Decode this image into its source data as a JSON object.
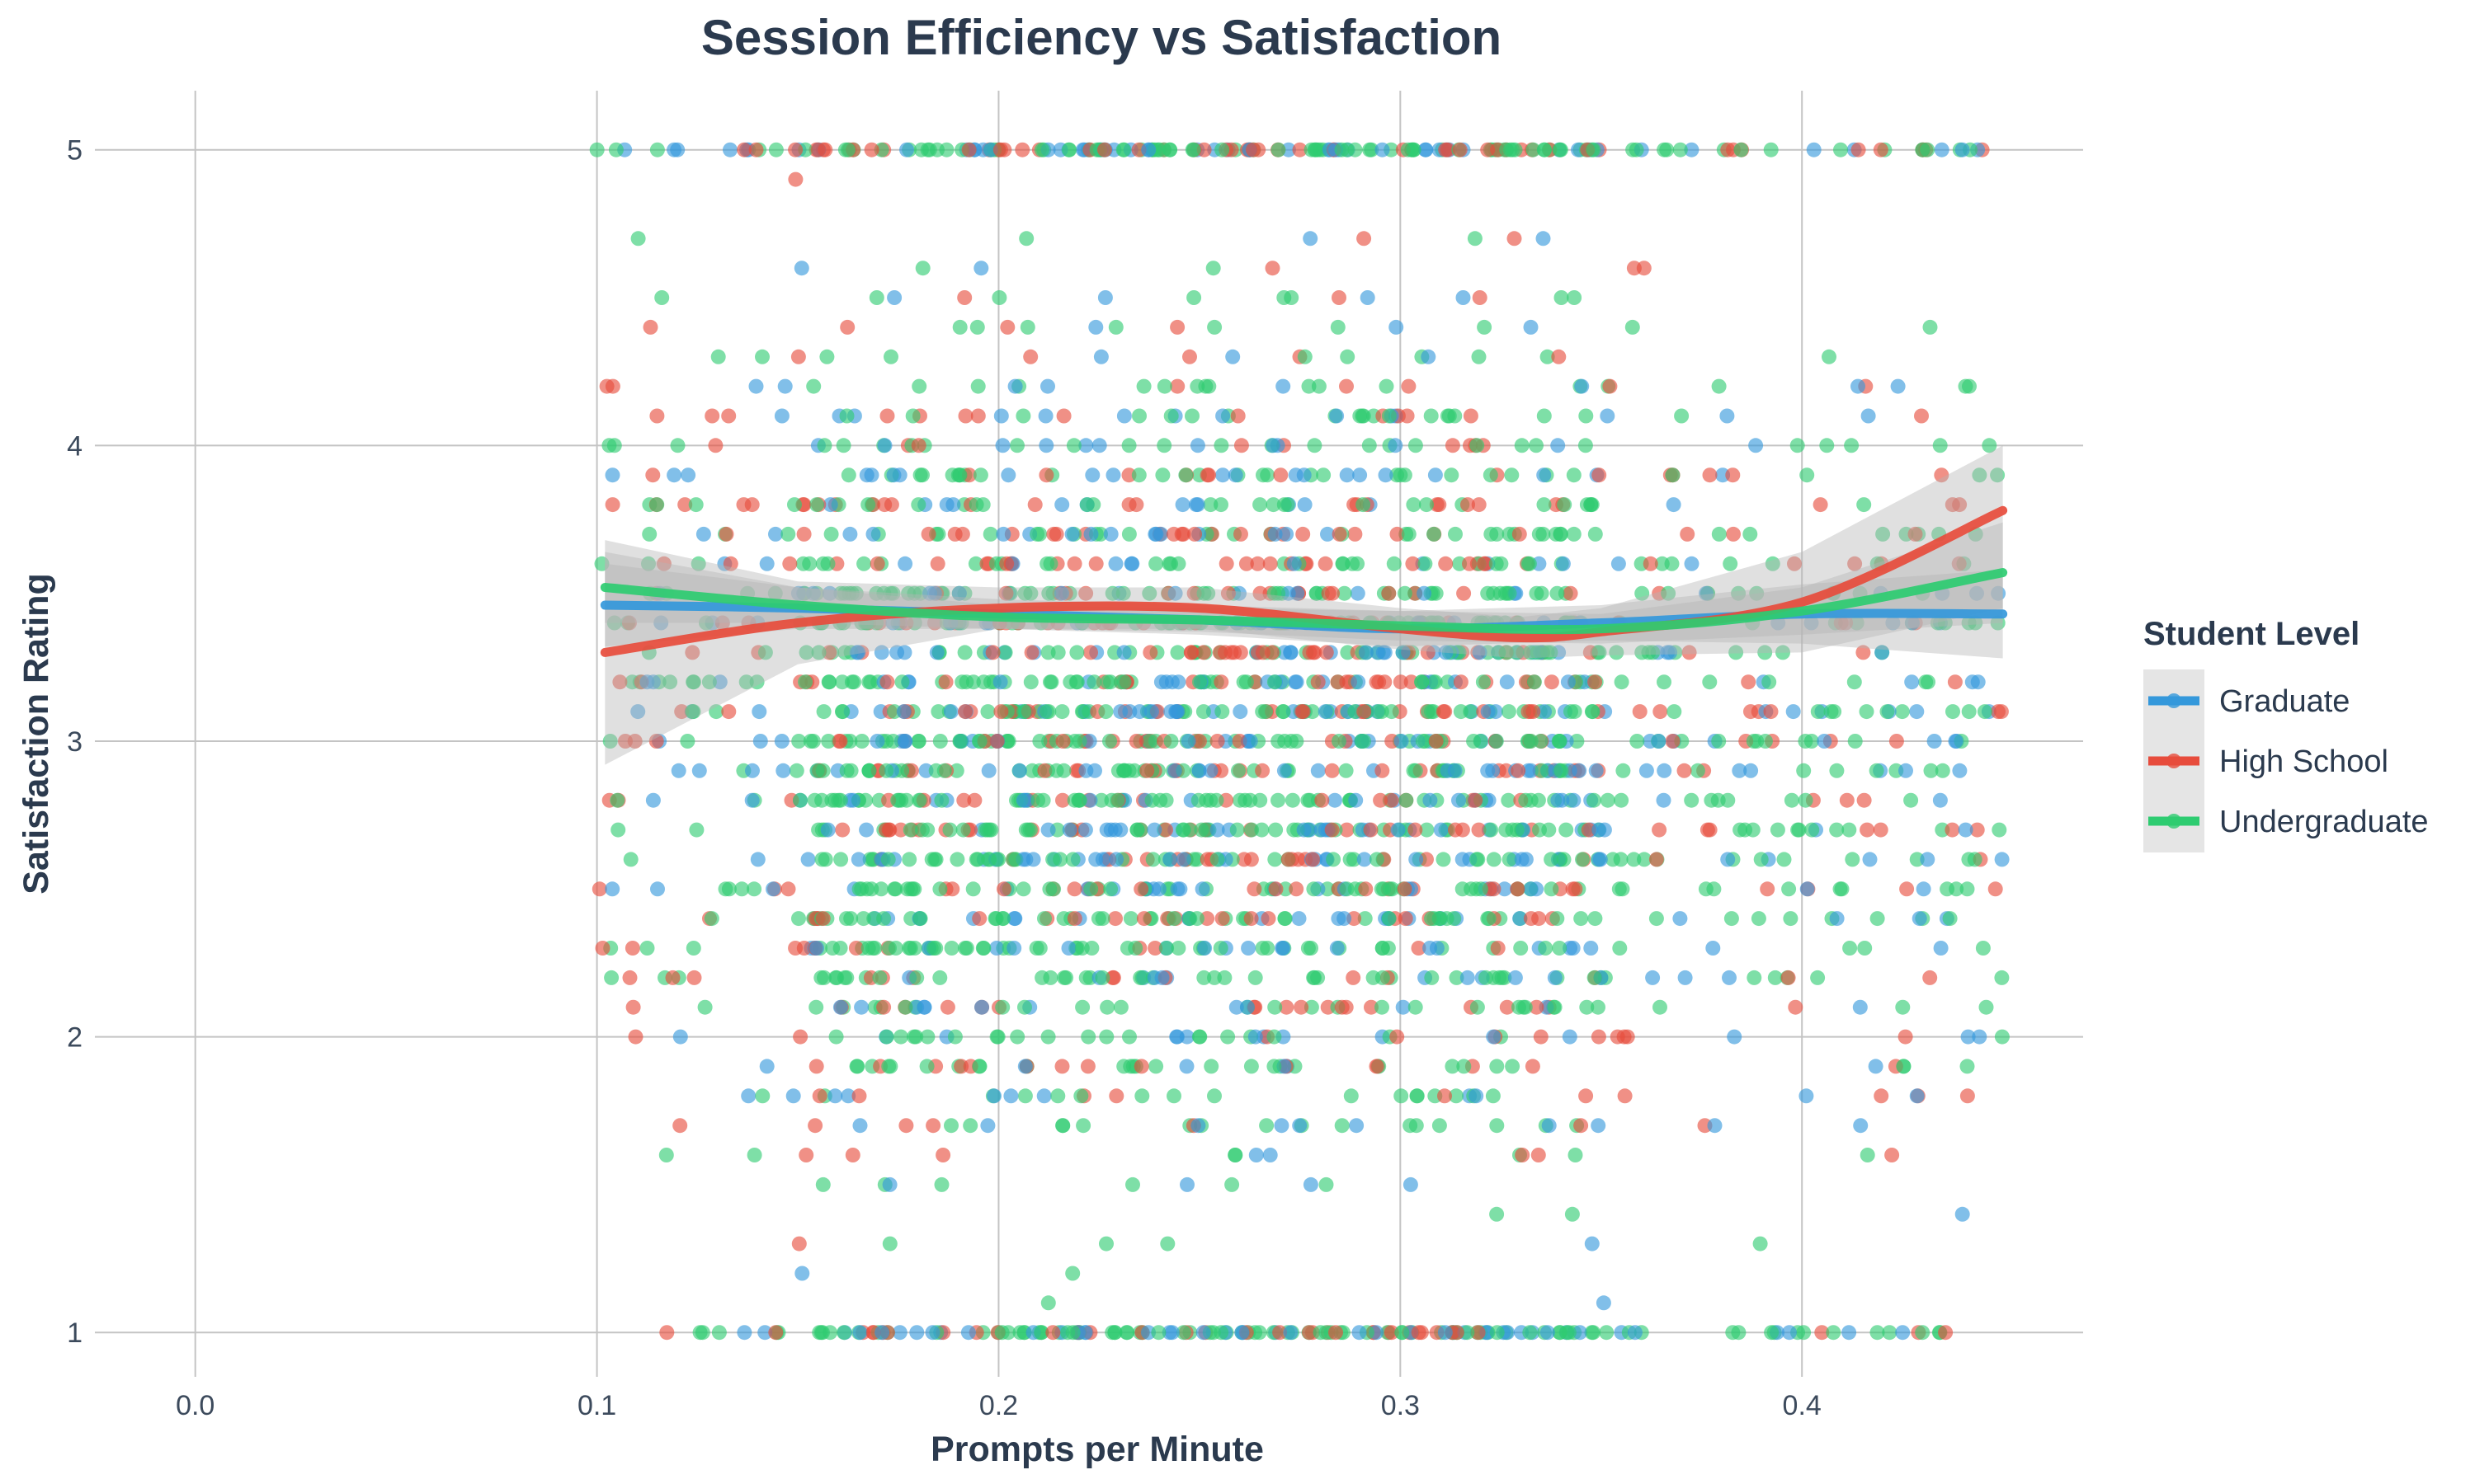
{
  "chart_data": {
    "type": "scatter",
    "title": "Session Efficiency vs Satisfaction",
    "xlabel": "Prompts per Minute",
    "ylabel": "Satisfaction Rating",
    "xlim": [
      -0.025,
      0.47
    ],
    "ylim": [
      0.85,
      5.2
    ],
    "x_ticks": [
      0.0,
      0.1,
      0.2,
      0.3,
      0.4
    ],
    "x_tick_labels": [
      "0.0",
      "0.1",
      "0.2",
      "0.3",
      "0.4"
    ],
    "y_ticks": [
      1,
      2,
      3,
      4,
      5
    ],
    "y_tick_labels": [
      "1",
      "2",
      "3",
      "4",
      "5"
    ],
    "grid": true,
    "legend": {
      "title": "Student Level",
      "placement": "right",
      "entries": [
        "Graduate",
        "High School",
        "Undergraduate"
      ]
    },
    "x_data_range": [
      0.1,
      0.45
    ],
    "y_data_range": [
      1.0,
      5.0
    ],
    "y_step": 0.1,
    "series": [
      {
        "name": "Graduate",
        "color": "#3498db",
        "trend": {
          "x": [
            0.102,
            0.15,
            0.2,
            0.25,
            0.3,
            0.35,
            0.4,
            0.45
          ],
          "y": [
            3.46,
            3.45,
            3.43,
            3.41,
            3.38,
            3.4,
            3.43,
            3.43
          ],
          "ci_lower": [
            3.32,
            3.38,
            3.38,
            3.36,
            3.32,
            3.34,
            3.33,
            3.28
          ],
          "ci_upper": [
            3.6,
            3.52,
            3.48,
            3.46,
            3.44,
            3.46,
            3.53,
            3.58
          ]
        }
      },
      {
        "name": "High School",
        "color": "#e74c3c",
        "trend": {
          "x": [
            0.102,
            0.15,
            0.2,
            0.25,
            0.3,
            0.33,
            0.35,
            0.4,
            0.45
          ],
          "y": [
            3.3,
            3.4,
            3.45,
            3.45,
            3.38,
            3.35,
            3.37,
            3.47,
            3.78
          ],
          "ci_lower": [
            2.92,
            3.26,
            3.38,
            3.38,
            3.31,
            3.28,
            3.29,
            3.3,
            3.45
          ],
          "ci_upper": [
            3.68,
            3.54,
            3.52,
            3.52,
            3.45,
            3.42,
            3.45,
            3.64,
            4.0
          ]
        }
      },
      {
        "name": "Undergraduate",
        "color": "#2ecc71",
        "trend": {
          "x": [
            0.102,
            0.15,
            0.2,
            0.25,
            0.3,
            0.35,
            0.4,
            0.45
          ],
          "y": [
            3.52,
            3.46,
            3.42,
            3.41,
            3.39,
            3.38,
            3.44,
            3.57
          ],
          "ci_lower": [
            3.4,
            3.4,
            3.38,
            3.37,
            3.34,
            3.33,
            3.36,
            3.4
          ],
          "ci_upper": [
            3.64,
            3.52,
            3.46,
            3.45,
            3.44,
            3.43,
            3.52,
            3.74
          ]
        }
      }
    ],
    "point_density_note_free": true
  }
}
